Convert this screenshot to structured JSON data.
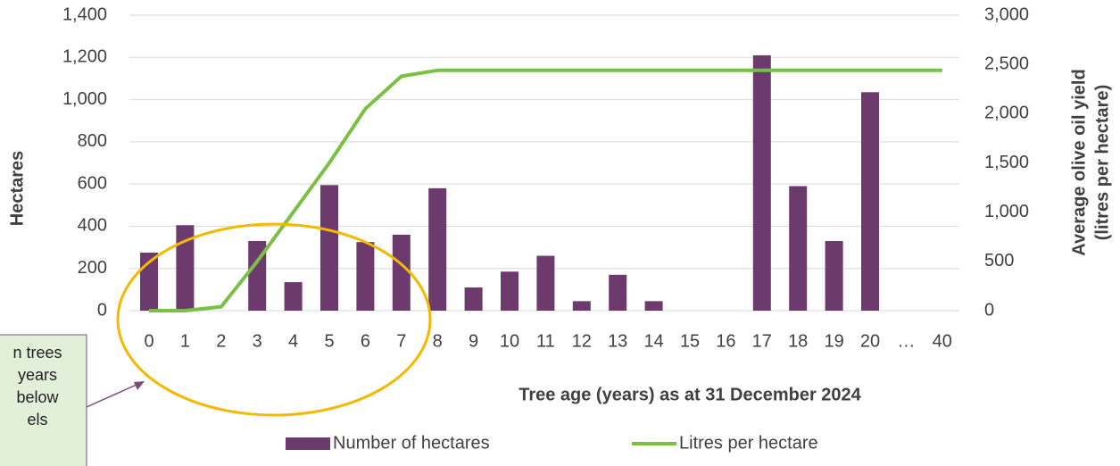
{
  "chart_data": {
    "type": "bar_line",
    "x_label": "Tree age (years) as at 31 December 2024",
    "y_label": "Hectares",
    "y2_label": [
      "Average olive oil yield",
      "(litres per hectare)"
    ],
    "categories": [
      "0",
      "1",
      "2",
      "3",
      "4",
      "5",
      "6",
      "7",
      "8",
      "9",
      "10",
      "11",
      "12",
      "13",
      "14",
      "15",
      "16",
      "17",
      "18",
      "19",
      "20",
      "…",
      "40"
    ],
    "series": [
      {
        "name": "Number of hectares",
        "type": "bar",
        "color": "#6d3a6e",
        "values": [
          275,
          405,
          0,
          330,
          135,
          595,
          325,
          360,
          580,
          110,
          185,
          260,
          45,
          170,
          45,
          0,
          0,
          1210,
          590,
          330,
          1035,
          0,
          0
        ]
      },
      {
        "name": "Litres per hectare",
        "type": "line",
        "color": "#7ac143",
        "axis": "y2",
        "values": [
          0,
          0,
          40,
          500,
          1000,
          1500,
          2050,
          2380,
          2440,
          2440,
          2440,
          2440,
          2440,
          2440,
          2440,
          2440,
          2440,
          2440,
          2440,
          2440,
          2440,
          2440,
          2440
        ]
      }
    ],
    "ylim": [
      0,
      1400
    ],
    "yticks": [
      0,
      200,
      400,
      600,
      800,
      {
        "value": 1000,
        "label": "1,000"
      },
      {
        "value": 1200,
        "label": "1,200"
      },
      {
        "value": 1400,
        "label": "1,400"
      }
    ],
    "y2lim": [
      0,
      3000
    ],
    "y2ticks": [
      0,
      500,
      {
        "value": 1000,
        "label": "1,000"
      },
      {
        "value": 1500,
        "label": "1,500"
      },
      {
        "value": 2000,
        "label": "2,000"
      },
      {
        "value": 2500,
        "label": "2,500"
      },
      {
        "value": 3000,
        "label": "3,000"
      }
    ],
    "grid": true,
    "legend": "bottom",
    "annotation": [
      "n trees",
      "years",
      "below",
      "els"
    ]
  }
}
